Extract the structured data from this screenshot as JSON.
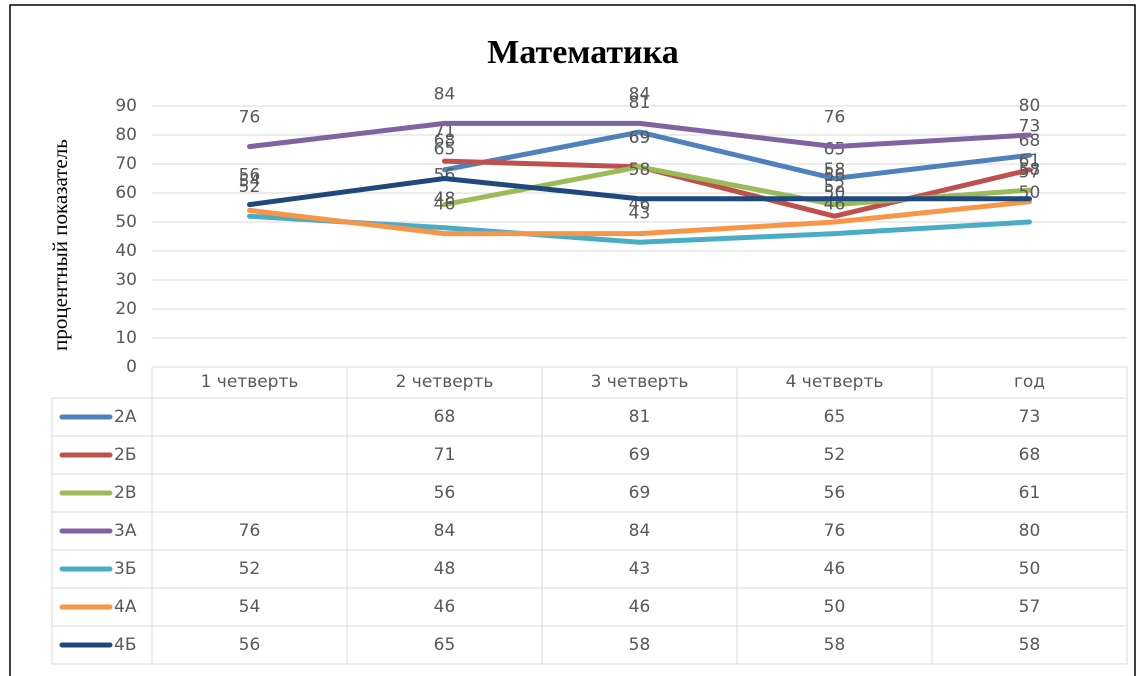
{
  "chart_data": {
    "type": "line",
    "title": "Математика",
    "y_label": "процентный показатель",
    "categories": [
      "1 четверть",
      "2 четверть",
      "3 четверть",
      "4 четверть",
      "год"
    ],
    "ylim": [
      0,
      90
    ],
    "yticks": [
      0,
      10,
      20,
      30,
      40,
      50,
      60,
      70,
      80,
      90
    ],
    "grid": true,
    "data_table": true,
    "series": [
      {
        "name": "2А",
        "color": "#4f81bd",
        "values": [
          null,
          68,
          81,
          65,
          73
        ]
      },
      {
        "name": "2Б",
        "color": "#c0504d",
        "values": [
          null,
          71,
          69,
          52,
          68
        ]
      },
      {
        "name": "2В",
        "color": "#9bbb59",
        "values": [
          null,
          56,
          69,
          56,
          61
        ]
      },
      {
        "name": "3А",
        "color": "#8064a2",
        "values": [
          76,
          84,
          84,
          76,
          80
        ]
      },
      {
        "name": "3Б",
        "color": "#4bacc6",
        "values": [
          52,
          48,
          43,
          46,
          50
        ]
      },
      {
        "name": "4А",
        "color": "#f79646",
        "values": [
          54,
          46,
          46,
          50,
          57
        ]
      },
      {
        "name": "4Б",
        "color": "#1f497d",
        "values": [
          56,
          65,
          58,
          58,
          58
        ]
      }
    ]
  }
}
